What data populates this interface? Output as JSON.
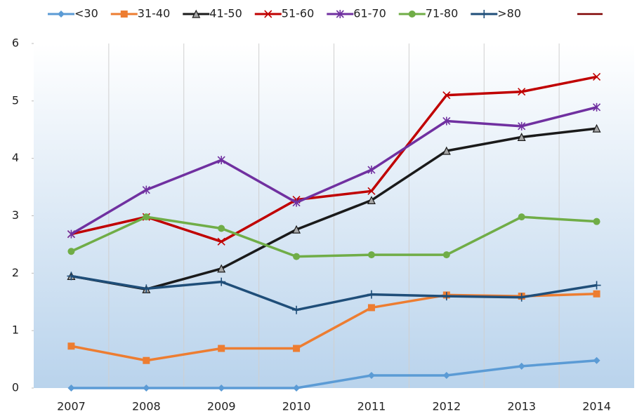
{
  "chart_data": {
    "type": "line",
    "categories": [
      "2007",
      "2008",
      "2009",
      "2010",
      "2011",
      "2012",
      "2013",
      "2014"
    ],
    "series": [
      {
        "name": "<30",
        "color": "#5b9bd5",
        "marker": "diamond",
        "values": [
          0,
          0,
          0,
          0,
          0.22,
          0.22,
          0.38,
          0.48
        ]
      },
      {
        "name": "31-40",
        "color": "#ed7d31",
        "marker": "square",
        "values": [
          0.73,
          0.48,
          0.69,
          0.69,
          1.4,
          1.62,
          1.6,
          1.64
        ]
      },
      {
        "name": "41-50",
        "color": "#1a1a1a",
        "marker": "triangle",
        "values": [
          1.95,
          1.72,
          2.08,
          2.76,
          3.27,
          4.13,
          4.37,
          4.52
        ]
      },
      {
        "name": "51-60",
        "color": "#c00000",
        "marker": "x",
        "values": [
          2.68,
          2.98,
          2.55,
          3.28,
          3.43,
          5.1,
          5.16,
          5.42
        ]
      },
      {
        "name": "61-70",
        "color": "#7030a0",
        "marker": "star",
        "values": [
          2.68,
          3.45,
          3.97,
          3.23,
          3.8,
          4.65,
          4.56,
          4.89
        ]
      },
      {
        "name": "71-80",
        "color": "#70ad47",
        "marker": "circle",
        "values": [
          2.38,
          2.98,
          2.78,
          2.29,
          2.32,
          2.32,
          2.98,
          2.9
        ]
      },
      {
        "name": ">80",
        "color": "#1f4e79",
        "marker": "plus",
        "values": [
          1.95,
          1.73,
          1.85,
          1.36,
          1.63,
          1.6,
          1.58,
          1.79
        ]
      }
    ],
    "ylim": [
      0,
      6
    ],
    "yticks": [
      0,
      1,
      2,
      3,
      4,
      5,
      6
    ]
  }
}
